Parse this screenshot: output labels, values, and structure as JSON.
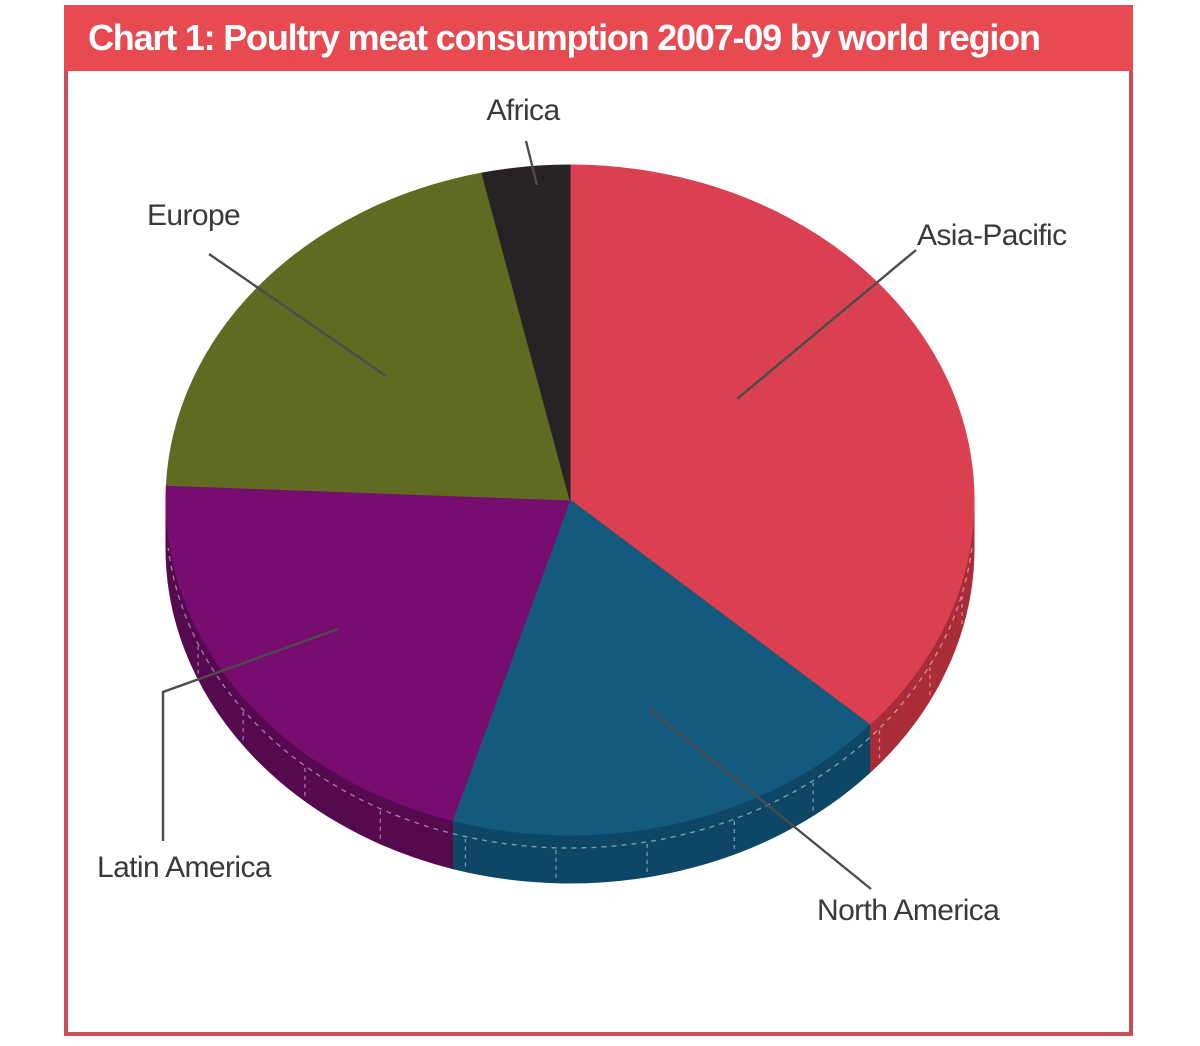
{
  "chart_data": {
    "type": "pie",
    "title": "Chart 1: Poultry meat consumption 2007-09 by world region",
    "labels": [
      "Asia-Pacific",
      "North America",
      "Latin America",
      "Europe",
      "Africa"
    ],
    "values": [
      36.7,
      18.0,
      21.0,
      20.8,
      3.5
    ],
    "colors": [
      "#da4050",
      "#135a7e",
      "#780d70",
      "#5f6b20",
      "#272324"
    ],
    "side_colors": [
      "#aa2c38",
      "#0d4765",
      "#550a4f",
      "#44501a",
      "#141213"
    ],
    "effect": "3d-pie",
    "start_angle_deg": 0,
    "direction": "clockwise",
    "legend": "none — direct slice labels with leader lines"
  },
  "theme": {
    "title_bar_bg": "#e84a52",
    "title_text_color": "#ffffff",
    "frame_border_color": "#c94c57",
    "page_bg": "#ffffff",
    "label_text_color": "#3b3839",
    "leader_line_color": "#4c4c4c",
    "rim_dash_color": "rgba(255,255,255,0.45)"
  }
}
